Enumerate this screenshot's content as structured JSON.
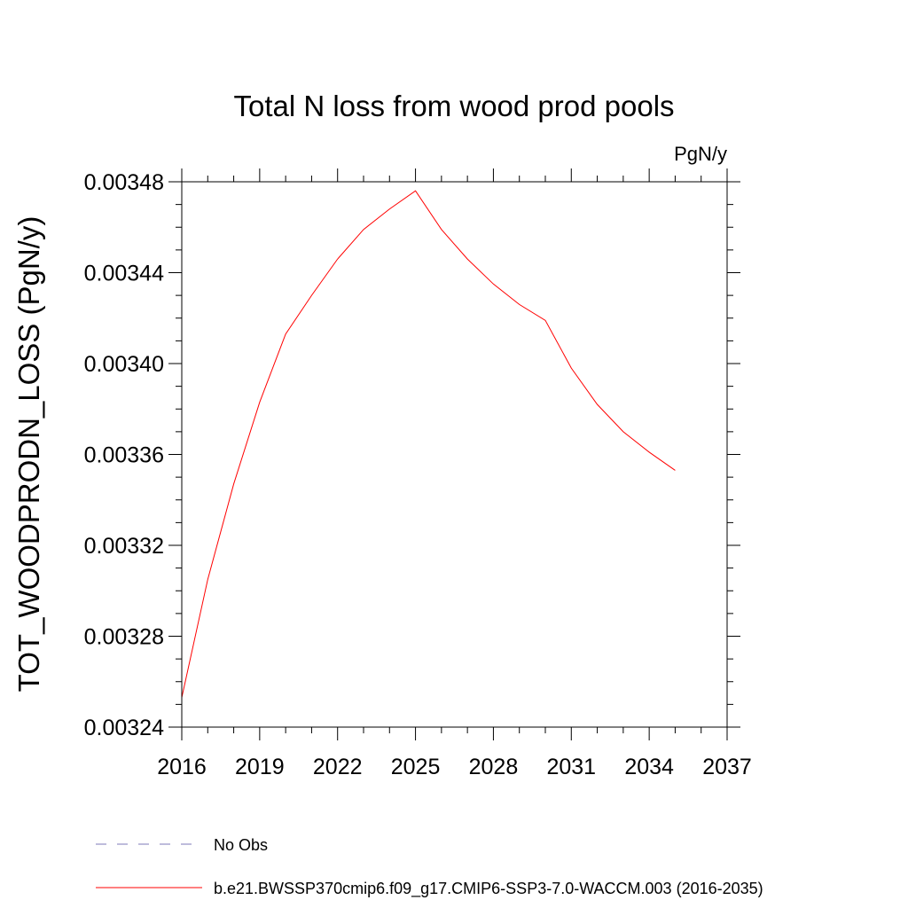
{
  "chart_data": {
    "type": "line",
    "title": "Total N loss from wood prod pools",
    "units_label": "PgN/y",
    "ylabel": "TOT_WOODPRODN_LOSS  (PgN/y)",
    "xlabel": "",
    "xlim": [
      2016,
      2037
    ],
    "ylim": [
      0.00324,
      0.00348
    ],
    "x_major_ticks": [
      2016,
      2019,
      2022,
      2025,
      2028,
      2031,
      2034,
      2037
    ],
    "x_tick_labels": [
      "2016",
      "2019",
      "2022",
      "2025",
      "2028",
      "2031",
      "2034",
      "2037"
    ],
    "y_major_ticks": [
      0.00324,
      0.00328,
      0.00332,
      0.00336,
      0.0034,
      0.00344,
      0.00348
    ],
    "y_tick_labels": [
      "0.00324",
      "0.00328",
      "0.00332",
      "0.00336",
      "0.00340",
      "0.00344",
      "0.00348"
    ],
    "series": [
      {
        "name": "b.e21.BWSSP370cmip6.f09_g17.CMIP6-SSP3-7.0-WACCM.003 (2016-2035)",
        "color": "#ff0000",
        "style": "solid",
        "x": [
          2016,
          2017,
          2018,
          2019,
          2020,
          2021,
          2022,
          2023,
          2024,
          2025,
          2026,
          2027,
          2028,
          2029,
          2030,
          2031,
          2032,
          2033,
          2034,
          2035
        ],
        "y": [
          0.003253,
          0.003305,
          0.003347,
          0.003383,
          0.003413,
          0.00343,
          0.003446,
          0.003459,
          0.003468,
          0.003476,
          0.003459,
          0.003446,
          0.003435,
          0.003426,
          0.003419,
          0.003398,
          0.003382,
          0.00337,
          0.003361,
          0.003353
        ]
      }
    ],
    "legend": [
      {
        "label": "No Obs",
        "color": "#7d7ab8",
        "style": "dashed"
      },
      {
        "label": "b.e21.BWSSP370cmip6.f09_g17.CMIP6-SSP3-7.0-WACCM.003 (2016-2035)",
        "color": "#ff0000",
        "style": "solid"
      }
    ]
  }
}
